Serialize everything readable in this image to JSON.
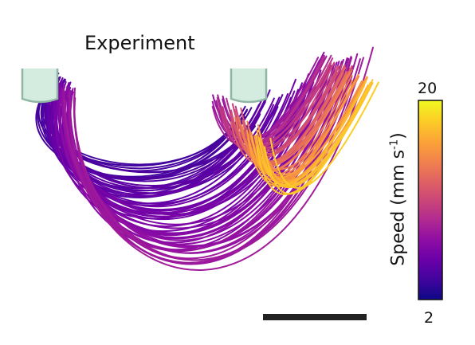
{
  "figure": {
    "title": "Experiment",
    "colorbar": {
      "label_main": "Speed (mm s",
      "label_sup": "-1",
      "label_end": ")",
      "max": "20",
      "min": "2",
      "colormap": [
        "#0d0887",
        "#41049d",
        "#6a00a8",
        "#8f0da4",
        "#b12a90",
        "#cc4778",
        "#e16462",
        "#f2844b",
        "#fca636",
        "#fcce25",
        "#f0f921"
      ]
    },
    "trajectories": {
      "low_speed_color": "#3a0a5e",
      "mid_speed_color": "#7a1aa0",
      "high_speed_color": "#f5a623"
    },
    "scale_bar_color": "#222222",
    "inlet_color": "#cfe8dc"
  }
}
